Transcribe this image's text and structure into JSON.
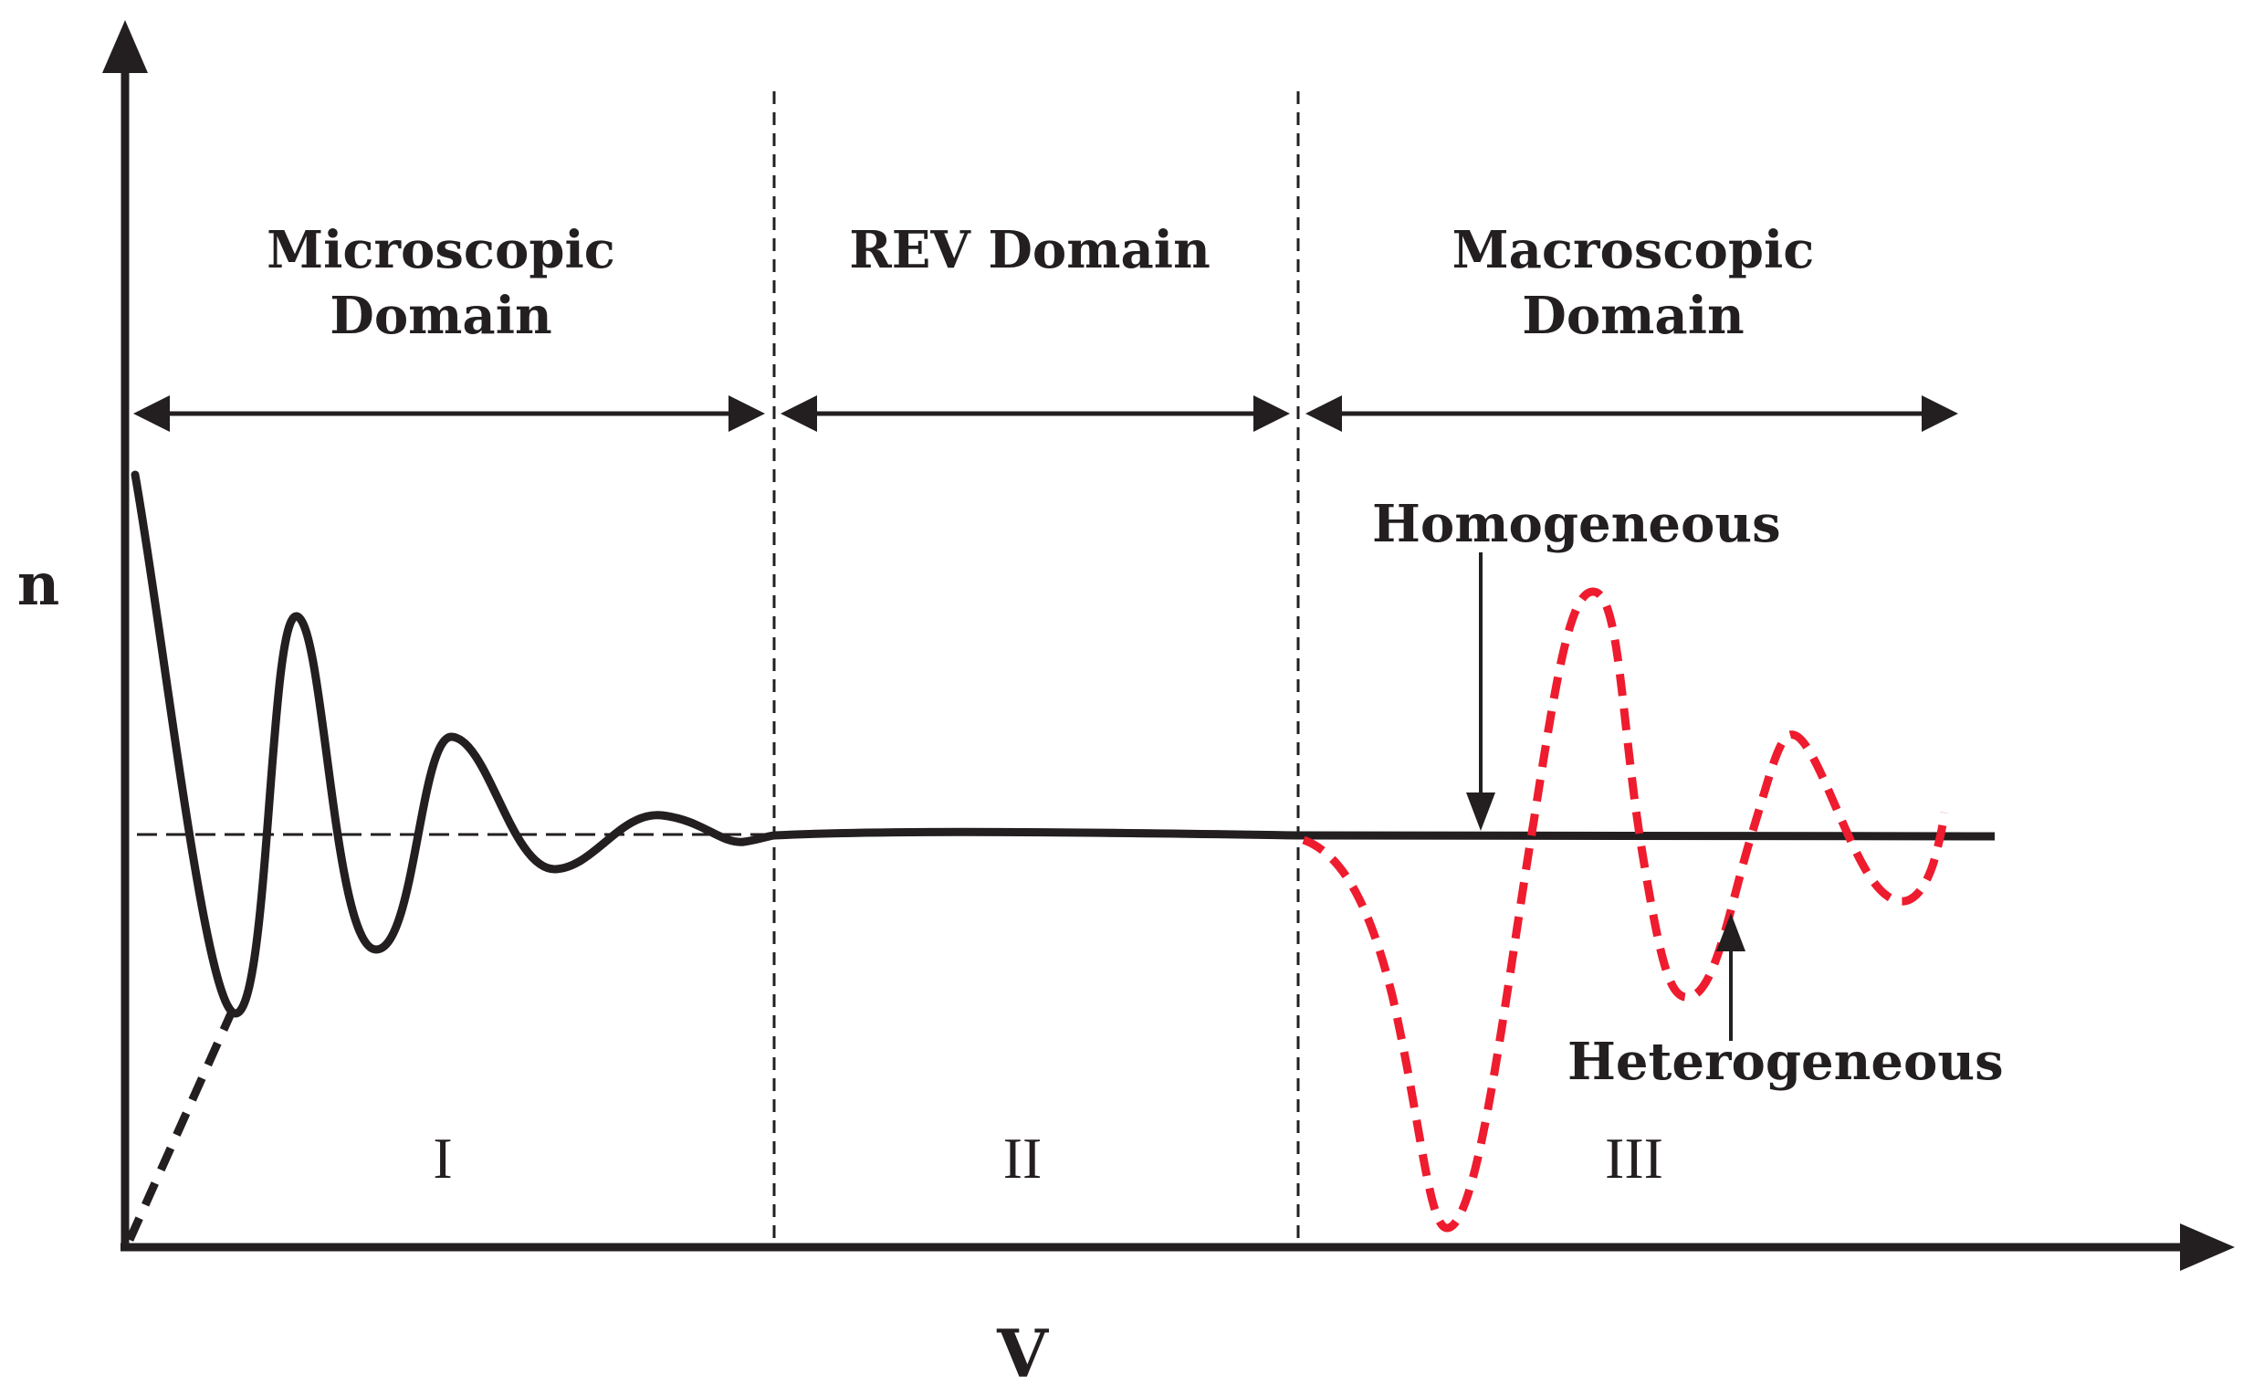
{
  "axes": {
    "y_label": "n",
    "x_label": "V"
  },
  "domains": [
    {
      "title_line1": "Microscopic",
      "title_line2": "Domain",
      "numeral": "I"
    },
    {
      "title_line1": "REV Domain",
      "title_line2": "",
      "numeral": "II"
    },
    {
      "title_line1": "Macroscopic",
      "title_line2": "Domain",
      "numeral": "III"
    }
  ],
  "annotations": {
    "homogeneous": "Homogeneous",
    "heterogeneous": "Heterogeneous"
  },
  "colors": {
    "ink": "#231f20",
    "heterogeneous_curve": "#ee1c2e"
  }
}
